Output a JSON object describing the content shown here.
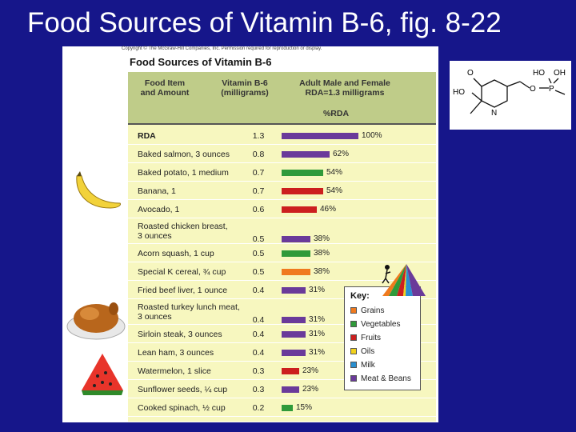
{
  "slide": {
    "title": "Food Sources of Vitamin B-6, fig. 8-22"
  },
  "figure": {
    "copyright": "Copyright © The McGraw-Hill Companies, Inc. Permission required for reproduction or display.",
    "title": "Food Sources of Vitamin B-6",
    "headers": {
      "food_l1": "Food Item",
      "food_l2": "and Amount",
      "vit_l1": "Vitamin B-6",
      "vit_l2": "(milligrams)",
      "rda_l1": "Adult Male and Female",
      "rda_l2": "RDA=1.3 milligrams",
      "pct": "%RDA"
    },
    "rows": [
      {
        "name": "RDA",
        "value": "1.3",
        "pct": "100%",
        "group": "meat",
        "fraction": 1.0
      },
      {
        "name": "Baked salmon, 3 ounces",
        "value": "0.8",
        "pct": "62%",
        "group": "meat",
        "fraction": 0.62
      },
      {
        "name": "Baked potato, 1 medium",
        "value": "0.7",
        "pct": "54%",
        "group": "vegetables",
        "fraction": 0.54
      },
      {
        "name": "Banana, 1",
        "value": "0.7",
        "pct": "54%",
        "group": "fruits",
        "fraction": 0.54
      },
      {
        "name": "Avocado, 1",
        "value": "0.6",
        "pct": "46%",
        "group": "fruits",
        "fraction": 0.46
      },
      {
        "name": "Roasted chicken breast,",
        "name2": "3 ounces",
        "value": "0.5",
        "pct": "38%",
        "group": "meat",
        "fraction": 0.38
      },
      {
        "name": "Acorn squash, 1 cup",
        "value": "0.5",
        "pct": "38%",
        "group": "vegetables",
        "fraction": 0.38
      },
      {
        "name": "Special K cereal, ¾ cup",
        "value": "0.5",
        "pct": "38%",
        "group": "grains",
        "fraction": 0.38
      },
      {
        "name": "Fried beef liver, 1 ounce",
        "value": "0.4",
        "pct": "31%",
        "group": "meat",
        "fraction": 0.31
      },
      {
        "name": "Roasted turkey lunch meat,",
        "name2": "3 ounces",
        "value": "0.4",
        "pct": "31%",
        "group": "meat",
        "fraction": 0.31
      },
      {
        "name": "Sirloin steak, 3 ounces",
        "value": "0.4",
        "pct": "31%",
        "group": "meat",
        "fraction": 0.31
      },
      {
        "name": "Lean ham, 3 ounces",
        "value": "0.4",
        "pct": "31%",
        "group": "meat",
        "fraction": 0.31
      },
      {
        "name": "Watermelon, 1 slice",
        "value": "0.3",
        "pct": "23%",
        "group": "fruits",
        "fraction": 0.23
      },
      {
        "name": "Sunflower seeds, ¼ cup",
        "value": "0.3",
        "pct": "23%",
        "group": "meat",
        "fraction": 0.23
      },
      {
        "name": "Cooked spinach, ½ cup",
        "value": "0.2",
        "pct": "15%",
        "group": "vegetables",
        "fraction": 0.15
      }
    ],
    "key": {
      "title": "Key:",
      "items": [
        {
          "label": "Grains",
          "group": "grains"
        },
        {
          "label": "Vegetables",
          "group": "vegetables"
        },
        {
          "label": "Fruits",
          "group": "fruits"
        },
        {
          "label": "Oils",
          "group": "oils"
        },
        {
          "label": "Milk",
          "group": "milk"
        },
        {
          "label": "Meat & Beans",
          "group": "meat"
        }
      ]
    },
    "colors": {
      "grains": "#f07a1e",
      "vegetables": "#2f9a3a",
      "fruits": "#cc1f1f",
      "oils": "#f2d21b",
      "milk": "#2a8fd0",
      "meat": "#6a3a9a"
    }
  },
  "molecule": {
    "o": "O",
    "ho": "HO",
    "ho2": "HO",
    "oh": "OH",
    "p": "P",
    "o2": "O",
    "n": "N"
  }
}
